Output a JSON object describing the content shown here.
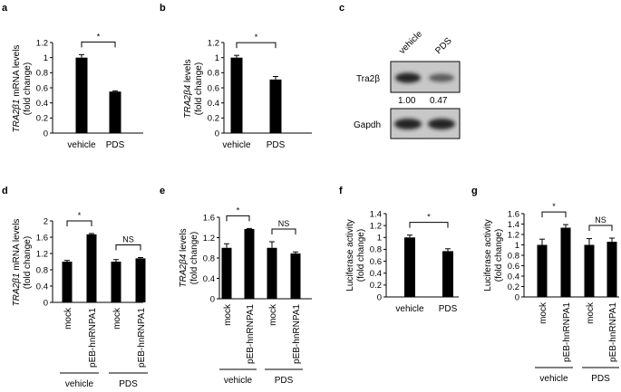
{
  "panel_labels": [
    "a",
    "b",
    "c",
    "d",
    "e",
    "f",
    "g"
  ],
  "chart_data": [
    {
      "panel": "a",
      "type": "bar",
      "categories": [
        "vehicle",
        "PDS"
      ],
      "values": [
        1.0,
        0.55
      ],
      "errors": [
        0.04,
        0.01
      ],
      "ylabel_italic": "TRA2β1",
      "ylabel": " mRNA levels",
      "ylabel2": "(fold change)",
      "ylim": [
        0,
        1.2
      ],
      "yticks": [
        "0",
        "0.2",
        "0.4",
        "0.6",
        "0.8",
        "1",
        "1.2"
      ],
      "sig": [
        {
          "from": 0,
          "to": 1,
          "label": "*"
        }
      ],
      "groups": []
    },
    {
      "panel": "b",
      "type": "bar",
      "categories": [
        "vehicle",
        "PDS"
      ],
      "values": [
        1.0,
        0.71
      ],
      "errors": [
        0.03,
        0.04
      ],
      "ylabel_italic": "TRA2β4",
      "ylabel": " levels",
      "ylabel2": "(fold change)",
      "ylim": [
        0,
        1.2
      ],
      "yticks": [
        "0",
        "0.2",
        "0.4",
        "0.6",
        "0.8",
        "1",
        "1.2"
      ],
      "sig": [
        {
          "from": 0,
          "to": 1,
          "label": "*"
        }
      ],
      "groups": []
    },
    {
      "panel": "d",
      "type": "bar",
      "categories": [
        "mock",
        "pEB-hnRNPA1",
        "mock",
        "pEB-hnRNPA1"
      ],
      "values": [
        1.0,
        1.67,
        1.0,
        1.08
      ],
      "errors": [
        0.03,
        0.02,
        0.05,
        0.02
      ],
      "ylabel_italic": "TRA2β1",
      "ylabel": " mRNA levels",
      "ylabel2": "(fold change)",
      "ylim": [
        0,
        2.0
      ],
      "yticks": [
        "0",
        "0.4",
        "0.8",
        "1.2",
        "1.6",
        "2"
      ],
      "sig": [
        {
          "from": 0,
          "to": 1,
          "label": "*"
        },
        {
          "from": 2,
          "to": 3,
          "label": "NS"
        }
      ],
      "groups": [
        {
          "label": "vehicle",
          "from": 0,
          "to": 1
        },
        {
          "label": "PDS",
          "from": 2,
          "to": 3
        }
      ]
    },
    {
      "panel": "e",
      "type": "bar",
      "categories": [
        "mock",
        "pEB-hnRNPA1",
        "mock",
        "pEB-hnRNPA1"
      ],
      "values": [
        1.0,
        1.37,
        1.0,
        0.89
      ],
      "errors": [
        0.08,
        0.01,
        0.12,
        0.03
      ],
      "ylabel_italic": "TRA2β4",
      "ylabel": " levels",
      "ylabel2": "(fold change)",
      "ylim": [
        0,
        1.6
      ],
      "yticks": [
        "0",
        "0.4",
        "0.8",
        "1.2",
        "1.6"
      ],
      "sig": [
        {
          "from": 0,
          "to": 1,
          "label": "*"
        },
        {
          "from": 2,
          "to": 3,
          "label": "NS"
        }
      ],
      "groups": [
        {
          "label": "vehicle",
          "from": 0,
          "to": 1
        },
        {
          "label": "PDS",
          "from": 2,
          "to": 3
        }
      ]
    },
    {
      "panel": "f",
      "type": "bar",
      "categories": [
        "vehicle",
        "PDS"
      ],
      "values": [
        1.0,
        0.77
      ],
      "errors": [
        0.04,
        0.04
      ],
      "ylabel_italic": "",
      "ylabel": "Luciferase activity",
      "ylabel2": "(fold change)",
      "ylim": [
        0,
        1.4
      ],
      "yticks": [
        "0",
        "0.2",
        "0.4",
        "0.6",
        "0.8",
        "1",
        "1.2",
        "1.4"
      ],
      "sig": [
        {
          "from": 0,
          "to": 1,
          "label": "*"
        }
      ],
      "groups": []
    },
    {
      "panel": "g",
      "type": "bar",
      "categories": [
        "mock",
        "pEB-hnRNPA1",
        "mock",
        "pEB-hnRNPA1"
      ],
      "values": [
        1.0,
        1.33,
        1.0,
        1.06
      ],
      "errors": [
        0.11,
        0.06,
        0.12,
        0.07
      ],
      "ylabel_italic": "",
      "ylabel": "Luciferase activity",
      "ylabel2": "(fold change)",
      "ylim": [
        0,
        1.6
      ],
      "yticks": [
        "0",
        "0.2",
        "0.4",
        "0.6",
        "0.8",
        "1",
        "1.2",
        "1.4",
        "1.6"
      ],
      "sig": [
        {
          "from": 0,
          "to": 1,
          "label": "*"
        },
        {
          "from": 2,
          "to": 3,
          "label": "NS"
        }
      ],
      "groups": [
        {
          "label": "vehicle",
          "from": 0,
          "to": 1
        },
        {
          "label": "PDS",
          "from": 2,
          "to": 3
        }
      ]
    }
  ],
  "blot": {
    "columns": [
      "vehicle",
      "PDS"
    ],
    "rows": [
      {
        "label": "Tra2β",
        "quant": [
          "1.00",
          "0.47"
        ],
        "intensity": [
          1.0,
          0.47
        ]
      },
      {
        "label": "Gapdh",
        "quant": [],
        "intensity": [
          1.0,
          1.0
        ]
      }
    ]
  },
  "colors": {
    "bar": "#000000",
    "axis": "#000000",
    "blot_bg": "#c9c9c9",
    "band": "#1a1a1a"
  }
}
